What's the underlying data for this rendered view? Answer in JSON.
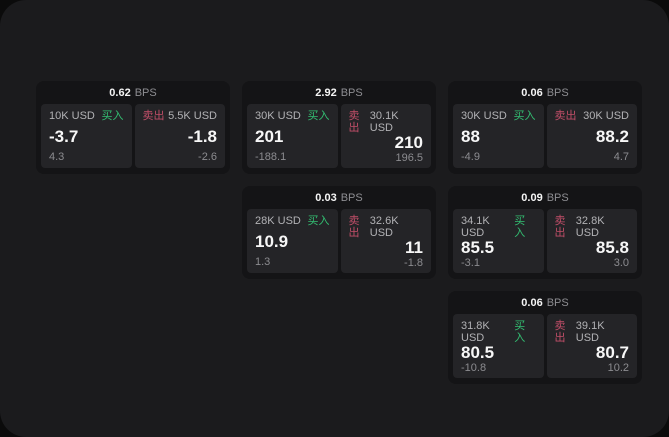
{
  "colors": {
    "page_bg": "#0b0b0b",
    "surface_bg": "#1b1b1d",
    "card_bg": "#141416",
    "panel_bg": "#242427",
    "text_primary": "#f5f5f5",
    "text_secondary": "#b2b2b5",
    "text_muted": "#8c8c90",
    "buy_green": "#33bf72",
    "sell_red": "#c14e68"
  },
  "cards": [
    {
      "bps_value": "0.62",
      "bps_unit": "BPS",
      "buy": {
        "size": "10K USD",
        "side_label": "买入",
        "price": "-3.7",
        "delta": "4.3"
      },
      "sell": {
        "side_label": "卖出",
        "size": "5.5K USD",
        "price": "-1.8",
        "delta": "-2.6"
      }
    },
    {
      "bps_value": "2.92",
      "bps_unit": "BPS",
      "buy": {
        "size": "30K USD",
        "side_label": "买入",
        "price": "201",
        "delta": "-188.1"
      },
      "sell": {
        "side_label": "卖出",
        "size": "30.1K USD",
        "price": "210",
        "delta": "196.5"
      }
    },
    {
      "bps_value": "0.06",
      "bps_unit": "BPS",
      "buy": {
        "size": "30K USD",
        "side_label": "买入",
        "price": "88",
        "delta": "-4.9"
      },
      "sell": {
        "side_label": "卖出",
        "size": "30K USD",
        "price": "88.2",
        "delta": "4.7"
      }
    },
    {
      "bps_value": "0.03",
      "bps_unit": "BPS",
      "buy": {
        "size": "28K USD",
        "side_label": "买入",
        "price": "10.9",
        "delta": "1.3"
      },
      "sell": {
        "side_label": "卖出",
        "size": "32.6K USD",
        "price": "11",
        "delta": "-1.8"
      }
    },
    {
      "bps_value": "0.09",
      "bps_unit": "BPS",
      "buy": {
        "size": "34.1K USD",
        "side_label": "买入",
        "price": "85.5",
        "delta": "-3.1"
      },
      "sell": {
        "side_label": "卖出",
        "size": "32.8K USD",
        "price": "85.8",
        "delta": "3.0"
      }
    },
    {
      "bps_value": "0.06",
      "bps_unit": "BPS",
      "buy": {
        "size": "31.8K USD",
        "side_label": "买入",
        "price": "80.5",
        "delta": "-10.8"
      },
      "sell": {
        "side_label": "卖出",
        "size": "39.1K USD",
        "price": "80.7",
        "delta": "10.2"
      }
    }
  ]
}
